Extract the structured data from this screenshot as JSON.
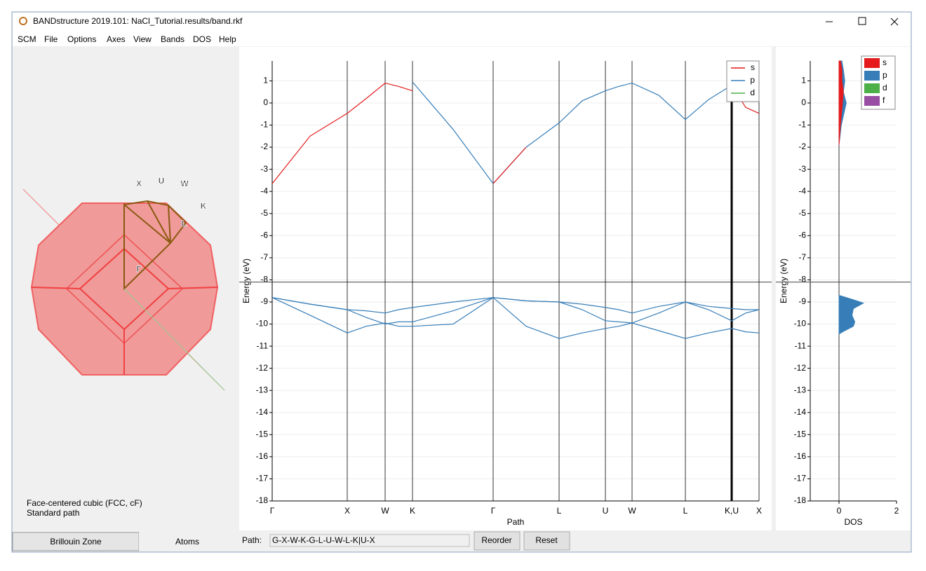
{
  "window": {
    "title": "BANDstructure 2019.101: NaCl_Tutorial.results/band.rkf"
  },
  "menu": [
    "SCM",
    "File",
    "Options",
    "Axes",
    "View",
    "Bands",
    "DOS",
    "Help"
  ],
  "zone": {
    "labels": [
      "X",
      "U",
      "W",
      "K",
      "L",
      "Γ"
    ],
    "lattice": "Face-centered cubic (FCC, cF)",
    "path_kind": "Standard path"
  },
  "tabs": [
    "Brillouin Zone",
    "Atoms"
  ],
  "toolbar": {
    "path_label": "Path:",
    "path_value": "G-X-W-K-G-L-U-W-L-K|U-X",
    "buttons": [
      "Reorder",
      "Reset"
    ]
  },
  "chart_data": [
    {
      "type": "line",
      "ylabel": "Energy (eV)",
      "xlabel": "Path",
      "xlim": [
        0,
        694
      ],
      "ylim": [
        -18,
        1.9
      ],
      "xticks": [
        {
          "value": 0,
          "label": "Γ"
        },
        {
          "value": 107,
          "label": "X"
        },
        {
          "value": 161,
          "label": "W"
        },
        {
          "value": 200,
          "label": "K"
        },
        {
          "value": 315,
          "label": "Γ"
        },
        {
          "value": 409,
          "label": "L"
        },
        {
          "value": 475,
          "label": "U"
        },
        {
          "value": 513,
          "label": "W"
        },
        {
          "value": 589,
          "label": "L"
        },
        {
          "value": 655,
          "label": "K,U"
        },
        {
          "value": 694,
          "label": "X"
        }
      ],
      "yticks": [
        1,
        0,
        -1,
        -2,
        -3,
        -4,
        -5,
        -6,
        -7,
        -8,
        -9,
        -10,
        -11,
        -12,
        -13,
        -14,
        -15,
        -16,
        -17,
        -18
      ],
      "grid": true,
      "fermi_level": -8.1,
      "cursor_x": 655,
      "legend": [
        {
          "name": "s",
          "color": "#e41a1c"
        },
        {
          "name": "p",
          "color": "#377eb8"
        },
        {
          "name": "d",
          "color": "#4daf4a"
        }
      ],
      "x": [
        0,
        54,
        107,
        134,
        161,
        180,
        200,
        258,
        315,
        362,
        409,
        442,
        475,
        494,
        513,
        551,
        589,
        622,
        655,
        675,
        694
      ],
      "series": [
        {
          "color": "#377eb8",
          "values": [
            null,
            null,
            null,
            null,
            null,
            null,
            0.95,
            -1.2,
            -3.65,
            -2.0,
            -0.9,
            0.1,
            0.55,
            0.75,
            0.9,
            0.35,
            -0.75,
            0.15,
            0.8,
            null,
            null
          ]
        },
        {
          "color": "#e41a1c",
          "values": [
            -3.65,
            -1.5,
            -0.47,
            0.2,
            0.9,
            0.75,
            0.55,
            null,
            -3.65,
            -2.0,
            null,
            null,
            null,
            null,
            null,
            null,
            null,
            null,
            0.8,
            -0.2,
            -0.47
          ]
        },
        {
          "color": "#377eb8",
          "values": [
            -8.8,
            -9.6,
            -10.4,
            -10.1,
            -9.95,
            -10.1,
            -10.1,
            -10.0,
            -8.8,
            -10.1,
            -10.65,
            -10.4,
            -10.2,
            -10.1,
            -9.95,
            -10.3,
            -10.65,
            -10.4,
            -10.2,
            -10.35,
            -10.4
          ]
        },
        {
          "color": "#377eb8",
          "values": [
            -8.8,
            -9.1,
            -9.35,
            -9.7,
            -10.0,
            -9.9,
            -9.9,
            -9.4,
            -8.8,
            -8.95,
            -9.0,
            -9.35,
            -9.85,
            -9.9,
            -9.95,
            -9.5,
            -9.0,
            -9.35,
            -9.85,
            -9.5,
            -9.35
          ]
        },
        {
          "color": "#377eb8",
          "values": [
            -8.8,
            -9.1,
            -9.35,
            -9.4,
            -9.5,
            -9.35,
            -9.25,
            -9.0,
            -8.8,
            -8.95,
            -9.0,
            -9.1,
            -9.25,
            -9.35,
            -9.5,
            -9.2,
            -9.0,
            -9.2,
            -9.3,
            -9.35,
            -9.35
          ]
        }
      ]
    },
    {
      "type": "area",
      "ylabel": "Energy (eV)",
      "xlabel": "DOS",
      "xlim": [
        -1,
        2
      ],
      "ylim": [
        -18,
        1.9
      ],
      "xticks": [
        0,
        2
      ],
      "yticks": [
        1,
        0,
        -1,
        -2,
        -3,
        -4,
        -5,
        -6,
        -7,
        -8,
        -9,
        -10,
        -11,
        -12,
        -13,
        -14,
        -15,
        -16,
        -17,
        -18
      ],
      "grid": true,
      "fermi_level": -8.1,
      "legend": [
        {
          "name": "s",
          "color": "#e41a1c"
        },
        {
          "name": "p",
          "color": "#377eb8"
        },
        {
          "name": "d",
          "color": "#4daf4a"
        },
        {
          "name": "f",
          "color": "#984ea3"
        }
      ],
      "y": [
        -8.7,
        -8.9,
        -9.05,
        -9.3,
        -9.6,
        -9.9,
        -10.1,
        -10.3,
        -10.45,
        -1.9,
        -1.0,
        0,
        0.5,
        1.0,
        1.5,
        1.9
      ],
      "series": [
        {
          "color": "#377eb8",
          "values": [
            0,
            0.5,
            0.85,
            0.5,
            0.45,
            0.55,
            0.5,
            0.2,
            0,
            0,
            0.08,
            0.25,
            0.15,
            0.2,
            0.15,
            0.1
          ]
        },
        {
          "color": "#e41a1c",
          "values": [
            null,
            null,
            null,
            null,
            null,
            null,
            null,
            null,
            null,
            0,
            0.05,
            0.12,
            0.15,
            0.1,
            0.1,
            0.05
          ]
        }
      ]
    }
  ]
}
